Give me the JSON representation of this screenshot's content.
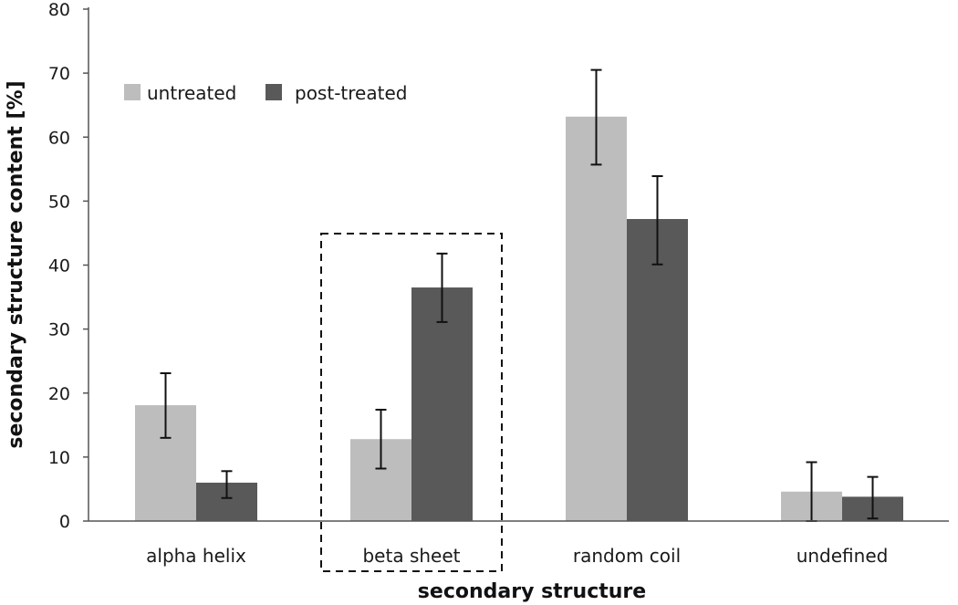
{
  "chart_data": {
    "type": "bar",
    "title": "",
    "xlabel": "secondary structure",
    "ylabel": "secondary structure content [%]",
    "ylim": [
      0,
      80
    ],
    "yticks": [
      0,
      10,
      20,
      30,
      40,
      50,
      60,
      70,
      80
    ],
    "grid": false,
    "legend_position": "top-left",
    "categories": [
      "alpha helix",
      "beta sheet",
      "random coil",
      "undefined"
    ],
    "series": [
      {
        "name": "untreated",
        "color": "#bdbdbd",
        "values": [
          18.1,
          12.8,
          63.2,
          4.6
        ],
        "error_low": [
          13.0,
          8.2,
          55.7,
          0.0
        ],
        "error_high": [
          23.1,
          17.4,
          70.5,
          9.2
        ]
      },
      {
        "name": "post-treated",
        "color": "#595959",
        "values": [
          6.0,
          36.5,
          47.2,
          3.8
        ],
        "error_low": [
          3.6,
          31.1,
          40.1,
          0.4
        ],
        "error_high": [
          7.8,
          41.8,
          53.9,
          6.9
        ]
      }
    ],
    "annotations": [
      {
        "type": "dashed-box",
        "category": "beta sheet"
      }
    ]
  }
}
